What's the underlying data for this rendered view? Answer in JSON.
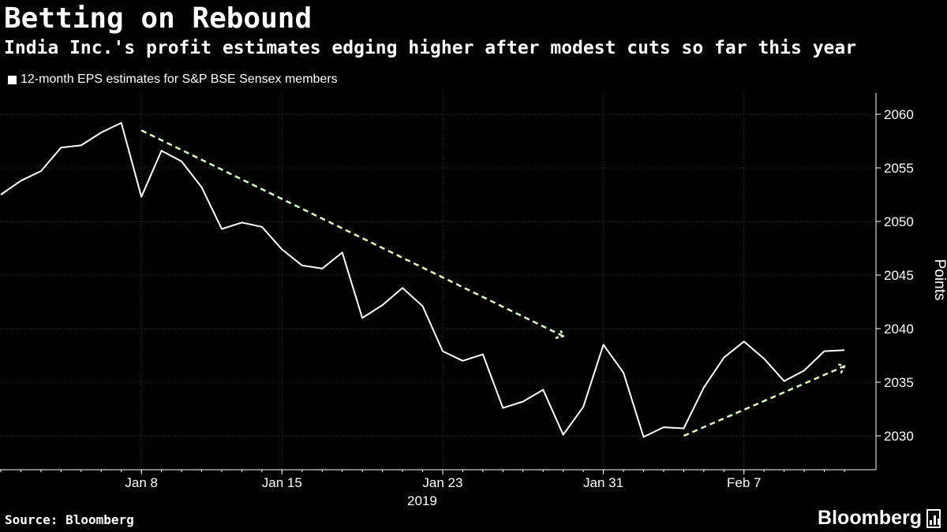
{
  "header": {
    "title": "Betting on Rebound",
    "subtitle": "India Inc.'s profit estimates edging higher after modest cuts so far this year"
  },
  "legend": {
    "label": "12-month EPS estimates for S&P BSE Sensex members"
  },
  "footer": {
    "source": "Source: Bloomberg",
    "brand": "Bloomberg"
  },
  "colors": {
    "background": "#000000",
    "line": "#ffffff",
    "trend": "#dff7c0",
    "grid": "#333333"
  },
  "chart_data": {
    "type": "line",
    "year_label": "2019",
    "ylabel": "Points",
    "ylim": [
      2027,
      2062
    ],
    "yticks": [
      2030,
      2035,
      2040,
      2045,
      2050,
      2055,
      2060
    ],
    "xticks": [
      "Jan 8",
      "Jan 15",
      "Jan 23",
      "Jan 31",
      "Feb 7"
    ],
    "x": [
      "2019-01-01",
      "2019-01-02",
      "2019-01-03",
      "2019-01-04",
      "2019-01-05",
      "2019-01-06",
      "2019-01-07",
      "2019-01-08",
      "2019-01-09",
      "2019-01-10",
      "2019-01-11",
      "2019-01-12",
      "2019-01-13",
      "2019-01-14",
      "2019-01-15",
      "2019-01-16",
      "2019-01-17",
      "2019-01-18",
      "2019-01-19",
      "2019-01-20",
      "2019-01-21",
      "2019-01-22",
      "2019-01-23",
      "2019-01-24",
      "2019-01-25",
      "2019-01-26",
      "2019-01-27",
      "2019-01-28",
      "2019-01-29",
      "2019-01-30",
      "2019-01-31",
      "2019-02-01",
      "2019-02-02",
      "2019-02-03",
      "2019-02-04",
      "2019-02-05",
      "2019-02-06",
      "2019-02-07",
      "2019-02-08",
      "2019-02-09",
      "2019-02-10",
      "2019-02-11",
      "2019-02-12"
    ],
    "series": [
      {
        "values": [
          2052.5,
          2053.8,
          2054.7,
          2056.9,
          2057.1,
          2058.3,
          2059.2,
          2052.3,
          2056.6,
          2055.6,
          2053.2,
          2049.3,
          2049.9,
          2049.5,
          2047.4,
          2045.9,
          2045.6,
          2047.1,
          2041.0,
          2042.2,
          2043.8,
          2042.1,
          2037.9,
          2037.0,
          2037.6,
          2032.6,
          2033.2,
          2034.3,
          2030.1,
          2032.7,
          2038.5,
          2035.9,
          2029.9,
          2030.8,
          2030.7,
          2034.5,
          2037.3,
          2038.8,
          2037.2,
          2035.1,
          2036.1,
          2037.9,
          2038.0
        ]
      }
    ],
    "trend_lines": [
      {
        "from": [
          "2019-01-08",
          2058.5
        ],
        "to": [
          "2019-01-29",
          2039.3
        ]
      },
      {
        "from": [
          "2019-02-04",
          2030.0
        ],
        "to": [
          "2019-02-12",
          2036.5
        ]
      }
    ]
  }
}
